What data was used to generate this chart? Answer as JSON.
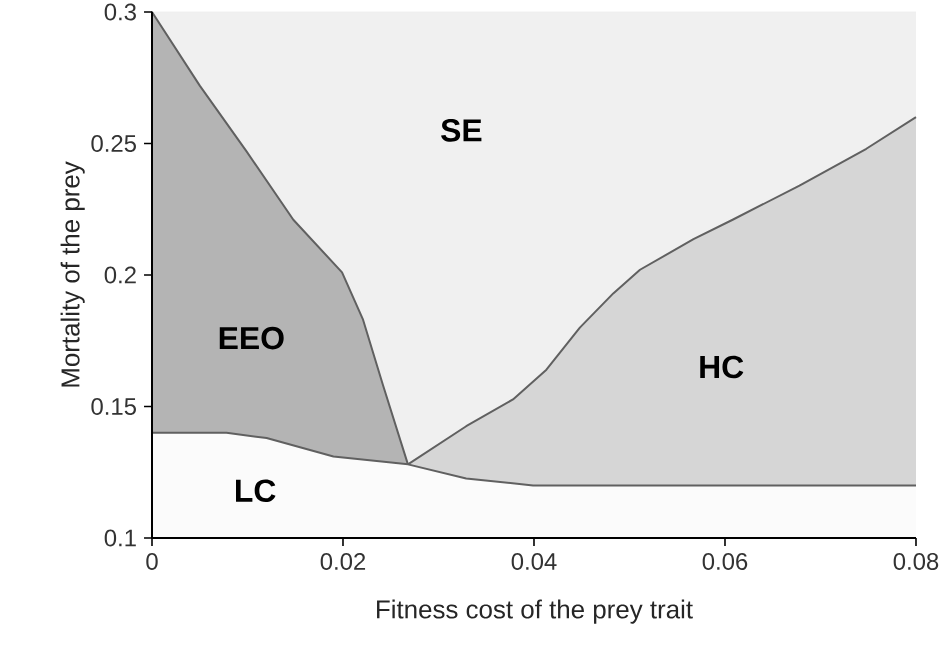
{
  "chart_data": {
    "type": "area",
    "xlabel": "Fitness cost of the prey trait",
    "ylabel": "Mortality of the prey",
    "xlim": [
      0,
      0.08
    ],
    "ylim": [
      0.1,
      0.3
    ],
    "xticks": [
      0,
      0.02,
      0.04,
      0.06,
      0.08
    ],
    "yticks": [
      0.1,
      0.15,
      0.2,
      0.25,
      0.3
    ],
    "grid": false,
    "series": [
      {
        "type": "area",
        "color": "#f0f0f0",
        "x": [
          0,
          0.005,
          0.0099,
          0.0148,
          0.0199,
          0.0221,
          0.0242,
          0.0268,
          0.0329,
          0.0378,
          0.0413,
          0.0448,
          0.0483,
          0.0511,
          0.0567,
          0.0608,
          0.0678,
          0.0748,
          0.08
        ],
        "values": [
          0.3,
          0.3,
          0.3,
          0.3,
          0.3,
          0.3,
          0.3,
          0.3,
          0.3,
          0.3,
          0.3,
          0.3,
          0.3,
          0.3,
          0.3,
          0.3,
          0.3,
          0.3,
          0.3
        ]
      },
      {
        "color": "#b4b4b4",
        "line_style": "solid",
        "x": [
          0,
          0.005,
          0.0099,
          0.0148,
          0.0199,
          0.0221,
          0.0242,
          0.0268
        ],
        "values": [
          0.3,
          0.272,
          0.247,
          0.221,
          0.201,
          0.183,
          0.158,
          0.128
        ]
      },
      {
        "color": "#d6d6d6",
        "line_style": "solid",
        "x": [
          0.0268,
          0.0329,
          0.0378,
          0.0413,
          0.0448,
          0.0483,
          0.0511,
          0.0567,
          0.0608,
          0.0678,
          0.0748,
          0.08
        ],
        "values": [
          0.128,
          0.1425,
          0.1527,
          0.164,
          0.18,
          0.193,
          0.202,
          0.2136,
          0.221,
          0.234,
          0.248,
          0.26
        ]
      },
      {
        "color": "#fbfbfb",
        "line_style": "solid",
        "x": [
          0,
          0.0078,
          0.012,
          0.019,
          0.0268,
          0.0329,
          0.0399,
          0.047,
          0.08
        ],
        "values": [
          0.14,
          0.14,
          0.138,
          0.131,
          0.128,
          0.1226,
          0.12,
          0.12,
          0.12
        ]
      }
    ],
    "annotations": [
      "SE",
      "EEO",
      "HC",
      "LC"
    ]
  }
}
